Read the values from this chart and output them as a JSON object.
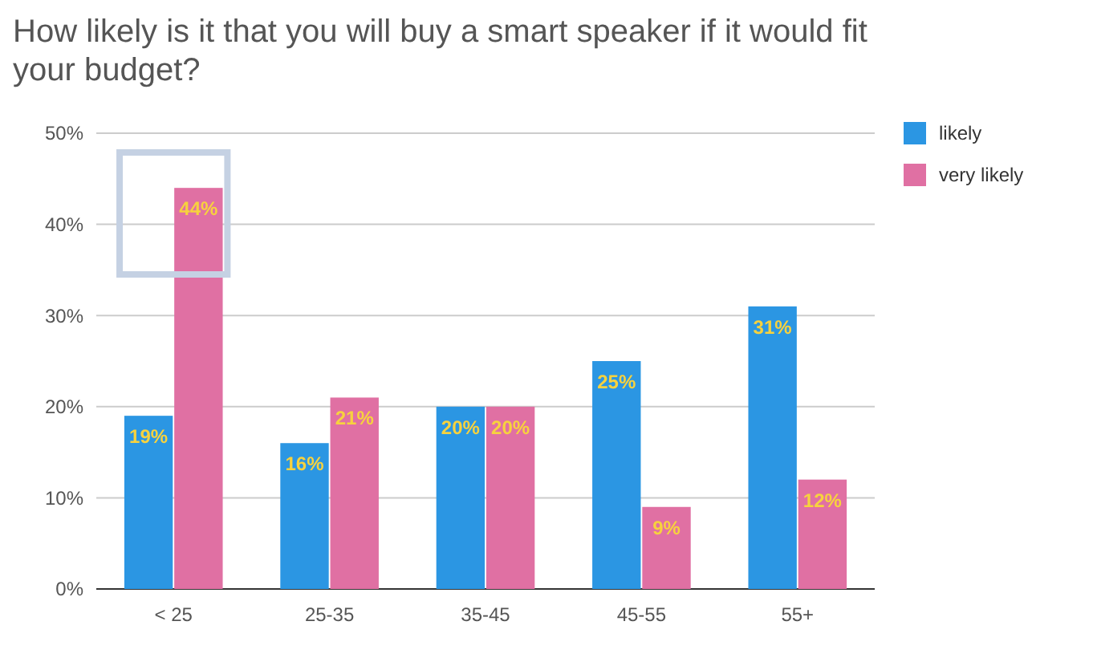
{
  "chart_data": {
    "type": "bar",
    "title": "How likely is it that you will buy a smart speaker if it would fit your budget?",
    "categories": [
      "< 25",
      "25-35",
      "35-45",
      "45-55",
      "55+"
    ],
    "series": [
      {
        "name": "likely",
        "color": "#2b96e3",
        "values": [
          19,
          16,
          20,
          25,
          31
        ],
        "value_labels": [
          "19%",
          "16%",
          "20%",
          "25%",
          "31%"
        ]
      },
      {
        "name": "very likely",
        "color": "#e070a3",
        "values": [
          44,
          21,
          20,
          9,
          12
        ],
        "value_labels": [
          "44%",
          "21%",
          "20%",
          "9%",
          "12%"
        ]
      }
    ],
    "ylim": [
      0,
      50
    ],
    "yticks": [
      {
        "value": 0,
        "label": "0%"
      },
      {
        "value": 10,
        "label": "10%"
      },
      {
        "value": 20,
        "label": "20%"
      },
      {
        "value": 30,
        "label": "30%"
      },
      {
        "value": 40,
        "label": "40%"
      },
      {
        "value": 50,
        "label": "50%"
      }
    ],
    "grid": "y",
    "legend": "right"
  }
}
